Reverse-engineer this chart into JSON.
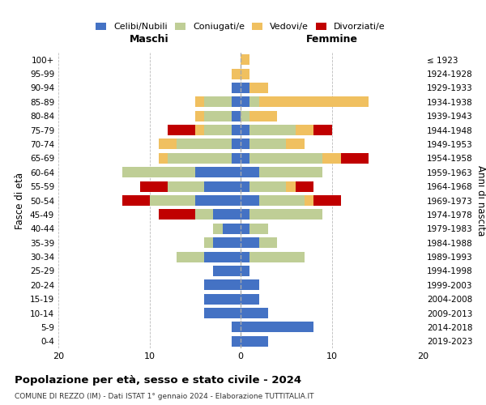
{
  "age_groups": [
    "0-4",
    "5-9",
    "10-14",
    "15-19",
    "20-24",
    "25-29",
    "30-34",
    "35-39",
    "40-44",
    "45-49",
    "50-54",
    "55-59",
    "60-64",
    "65-69",
    "70-74",
    "75-79",
    "80-84",
    "85-89",
    "90-94",
    "95-99",
    "100+"
  ],
  "birth_years": [
    "2019-2023",
    "2014-2018",
    "2009-2013",
    "2004-2008",
    "1999-2003",
    "1994-1998",
    "1989-1993",
    "1984-1988",
    "1979-1983",
    "1974-1978",
    "1969-1973",
    "1964-1968",
    "1959-1963",
    "1954-1958",
    "1949-1953",
    "1944-1948",
    "1939-1943",
    "1934-1938",
    "1929-1933",
    "1924-1928",
    "≤ 1923"
  ],
  "colors": {
    "celibi": "#4472C4",
    "coniugati": "#BFCE96",
    "vedovi": "#F0C060",
    "divorziati": "#C00000"
  },
  "maschi": {
    "celibi": [
      1,
      1,
      4,
      4,
      4,
      3,
      4,
      3,
      2,
      3,
      5,
      4,
      5,
      1,
      1,
      1,
      1,
      1,
      1,
      0,
      0
    ],
    "coniugati": [
      0,
      0,
      0,
      0,
      0,
      0,
      3,
      1,
      1,
      2,
      5,
      4,
      8,
      7,
      6,
      3,
      3,
      3,
      0,
      0,
      0
    ],
    "vedovi": [
      0,
      0,
      0,
      0,
      0,
      0,
      0,
      0,
      0,
      0,
      0,
      0,
      0,
      1,
      2,
      1,
      1,
      1,
      0,
      1,
      0
    ],
    "divorziati": [
      0,
      0,
      0,
      0,
      0,
      0,
      0,
      0,
      0,
      4,
      3,
      3,
      0,
      0,
      0,
      3,
      0,
      0,
      0,
      0,
      0
    ]
  },
  "femmine": {
    "celibi": [
      3,
      8,
      3,
      2,
      2,
      1,
      1,
      2,
      1,
      1,
      2,
      1,
      2,
      1,
      1,
      1,
      0,
      1,
      1,
      0,
      0
    ],
    "coniugati": [
      0,
      0,
      0,
      0,
      0,
      0,
      6,
      2,
      2,
      8,
      5,
      4,
      7,
      8,
      4,
      5,
      1,
      1,
      0,
      0,
      0
    ],
    "vedovi": [
      0,
      0,
      0,
      0,
      0,
      0,
      0,
      0,
      0,
      0,
      1,
      1,
      0,
      2,
      2,
      2,
      3,
      12,
      2,
      1,
      1
    ],
    "divorziati": [
      0,
      0,
      0,
      0,
      0,
      0,
      0,
      0,
      0,
      0,
      3,
      2,
      0,
      3,
      0,
      2,
      0,
      0,
      0,
      0,
      0
    ]
  },
  "xlim": 20,
  "title": "Popolazione per età, sesso e stato civile - 2024",
  "subtitle": "COMUNE DI REZZO (IM) - Dati ISTAT 1° gennaio 2024 - Elaborazione TUTTITALIA.IT",
  "ylabel_left": "Fasce di età",
  "ylabel_right": "Anni di nascita",
  "xlabel_left": "Maschi",
  "xlabel_right": "Femmine",
  "legend_labels": [
    "Celibi/Nubili",
    "Coniugati/e",
    "Vedovi/e",
    "Divorziati/e"
  ]
}
